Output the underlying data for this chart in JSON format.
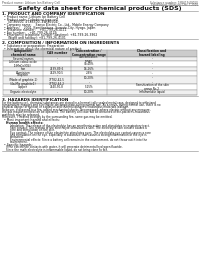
{
  "title": "Safety data sheet for chemical products (SDS)",
  "top_left": "Product name: Lithium Ion Battery Cell",
  "top_right_line1": "Substance number: 1N5619-00010",
  "top_right_line2": "Established / Revision: Dec.7,2016",
  "section1_title": "1. PRODUCT AND COMPANY IDENTIFICATION",
  "section1_lines": [
    "  • Product name: Lithium Ion Battery Cell",
    "  • Product code: Cylindrical-type cell",
    "      (4Y-86600, 4Y-86500, 4W-86504)",
    "  • Company name:    Sanyo Electric Co., Ltd., Mobile Energy Company",
    "  • Address:    2001, Kamionakura, Sumoto-City, Hyogo, Japan",
    "  • Telephone number:    +81-799-26-4111",
    "  • Fax number:    +81-799-26-4129",
    "  • Emergency telephone number (daytime): +81-799-26-3962",
    "      (Night and holiday): +81-799-26-4101"
  ],
  "section2_title": "2. COMPOSITION / INFORMATION ON INGREDIENTS",
  "section2_intro": "  • Substance or preparation: Preparation",
  "section2_sub": "  • Information about the chemical nature of product:",
  "table_headers": [
    "Component\nchemical name",
    "CAS number",
    "Concentration /\nConcentration range",
    "Classification and\nhazard labeling"
  ],
  "section3_title": "3. HAZARDS IDENTIFICATION",
  "para_lines": [
    "For the battery cell, chemical substances are stored in a hermetically sealed metal case, designed to withstand",
    "temperature changes and electrolyte-decomposition during normal use. As a result, during normal use, there is no",
    "physical danger of ignition or explosion and thermal danger of hazardous materials leakage.",
    "However, if exposed to a fire, added mechanical shocks, decomposed, where electric without any measure,",
    "the gas maybe emitted can be operated. The battery cell case will be breached of fire-patterns, hazardous",
    "materials may be released.",
    "Moreover, if heated strongly by the surrounding fire, some gas may be emitted."
  ],
  "bullet1": "  • Most important hazard and effects:",
  "human_health": "Human health effects:",
  "human_lines": [
    "Inhalation: The release of the electrolyte has an anesthesia action and stimulates in respiratory tract.",
    "Skin contact: The release of the electrolyte stimulates a skin. The electrolyte skin contact causes a",
    "sore and stimulation on the skin.",
    "Eye contact: The release of the electrolyte stimulates eyes. The electrolyte eye contact causes a sore",
    "and stimulation on the eye. Especially, a substance that causes a strong inflammation of the eye is",
    "contained.",
    "Environmental effects: Since a battery cell remains in the environment, do not throw out it into the",
    "environment."
  ],
  "bullet2": "  • Specific hazards:",
  "specific_lines": [
    "If the electrolyte contacts with water, it will generate detrimental hydrogen fluoride.",
    "Since the main electrolyte is inflammable liquid, do not bring close to fire."
  ],
  "bg_color": "#ffffff",
  "gray_header": "#cccccc",
  "line_color": "#888888",
  "text_dark": "#111111",
  "text_gray": "#555555"
}
